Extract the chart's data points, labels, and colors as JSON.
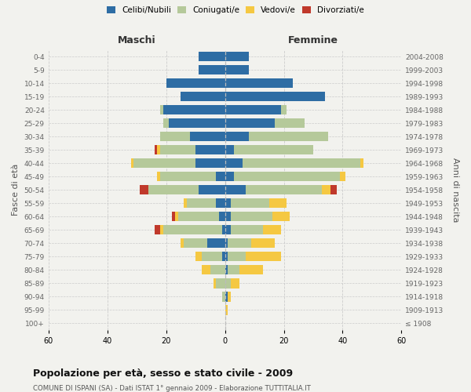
{
  "age_groups": [
    "100+",
    "95-99",
    "90-94",
    "85-89",
    "80-84",
    "75-79",
    "70-74",
    "65-69",
    "60-64",
    "55-59",
    "50-54",
    "45-49",
    "40-44",
    "35-39",
    "30-34",
    "25-29",
    "20-24",
    "15-19",
    "10-14",
    "5-9",
    "0-4"
  ],
  "birth_years": [
    "≤ 1908",
    "1909-1913",
    "1914-1918",
    "1919-1923",
    "1924-1928",
    "1929-1933",
    "1934-1938",
    "1939-1943",
    "1944-1948",
    "1949-1953",
    "1954-1958",
    "1959-1963",
    "1964-1968",
    "1969-1973",
    "1974-1978",
    "1979-1983",
    "1984-1988",
    "1989-1993",
    "1994-1998",
    "1999-2003",
    "2004-2008"
  ],
  "male": {
    "celibi": [
      0,
      0,
      0,
      0,
      0,
      1,
      6,
      1,
      2,
      3,
      9,
      3,
      10,
      10,
      12,
      19,
      21,
      15,
      20,
      9,
      9
    ],
    "coniugati": [
      0,
      0,
      1,
      3,
      5,
      7,
      8,
      20,
      14,
      10,
      17,
      19,
      21,
      12,
      10,
      2,
      1,
      0,
      0,
      0,
      0
    ],
    "vedovi": [
      0,
      0,
      0,
      1,
      3,
      2,
      1,
      1,
      1,
      1,
      0,
      1,
      1,
      1,
      0,
      0,
      0,
      0,
      0,
      0,
      0
    ],
    "divorziati": [
      0,
      0,
      0,
      0,
      0,
      0,
      0,
      2,
      1,
      0,
      3,
      0,
      0,
      1,
      0,
      0,
      0,
      0,
      0,
      0,
      0
    ]
  },
  "female": {
    "nubili": [
      0,
      0,
      1,
      0,
      1,
      1,
      1,
      2,
      2,
      2,
      7,
      3,
      6,
      3,
      8,
      17,
      19,
      34,
      23,
      8,
      8
    ],
    "coniugate": [
      0,
      0,
      0,
      2,
      4,
      6,
      8,
      11,
      14,
      13,
      26,
      36,
      40,
      27,
      27,
      10,
      2,
      0,
      0,
      0,
      0
    ],
    "vedove": [
      0,
      1,
      1,
      3,
      8,
      12,
      8,
      6,
      6,
      6,
      3,
      2,
      1,
      0,
      0,
      0,
      0,
      0,
      0,
      0,
      0
    ],
    "divorziate": [
      0,
      0,
      0,
      0,
      0,
      0,
      0,
      0,
      0,
      0,
      2,
      0,
      0,
      0,
      0,
      0,
      0,
      0,
      0,
      0,
      0
    ]
  },
  "colors": {
    "celibi": "#2e6da4",
    "coniugati": "#b5c99a",
    "vedovi": "#f5c842",
    "divorziati": "#c0392b"
  },
  "xlim": 60,
  "title": "Popolazione per età, sesso e stato civile - 2009",
  "subtitle": "COMUNE DI ISPANI (SA) - Dati ISTAT 1° gennaio 2009 - Elaborazione TUTTITALIA.IT",
  "ylabel_left": "Fasce di età",
  "ylabel_right": "Anni di nascita",
  "label_maschi": "Maschi",
  "label_femmine": "Femmine",
  "bg_color": "#f2f2ee",
  "grid_color": "#cccccc",
  "legend_labels": [
    "Celibi/Nubili",
    "Coniugati/e",
    "Vedovi/e",
    "Divorziati/e"
  ]
}
